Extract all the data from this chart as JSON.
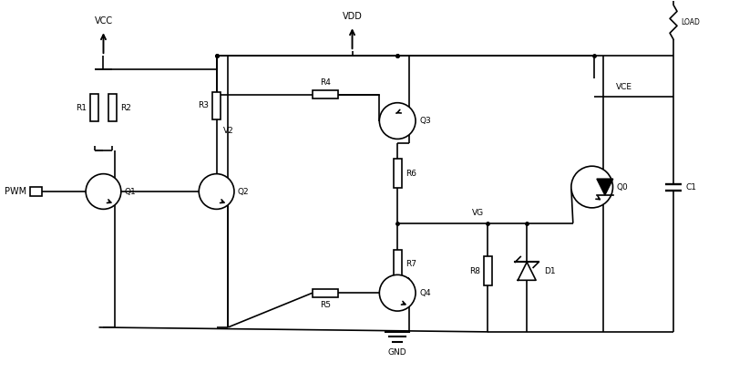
{
  "bg_color": "#ffffff",
  "line_color": "#000000",
  "lw": 1.2,
  "fig_w": 8.0,
  "fig_h": 4.2,
  "xlim": [
    0,
    8.0
  ],
  "ylim": [
    0,
    4.2
  ]
}
